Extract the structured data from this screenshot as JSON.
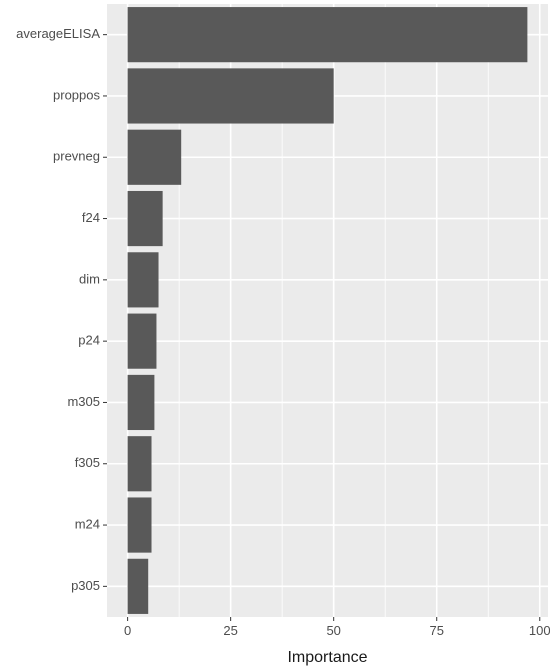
{
  "chart_data": {
    "type": "bar",
    "orientation": "horizontal",
    "categories": [
      "averageELISA",
      "proppos",
      "prevneg",
      "f24",
      "dim",
      "p24",
      "m305",
      "f305",
      "m24",
      "p305"
    ],
    "values": [
      97,
      50,
      13,
      8.5,
      7.5,
      7,
      6.5,
      5.8,
      5.8,
      5
    ],
    "xlabel": "Importance",
    "ylabel": "",
    "xlim": [
      -5,
      102
    ],
    "x_ticks": [
      0,
      25,
      50,
      75,
      100
    ],
    "grid": true,
    "colors": {
      "panel": "#ebebeb",
      "grid": "#ffffff",
      "bar": "#595959",
      "tick_text": "#4d4d4d",
      "title_text": "#1a1a1a"
    }
  }
}
